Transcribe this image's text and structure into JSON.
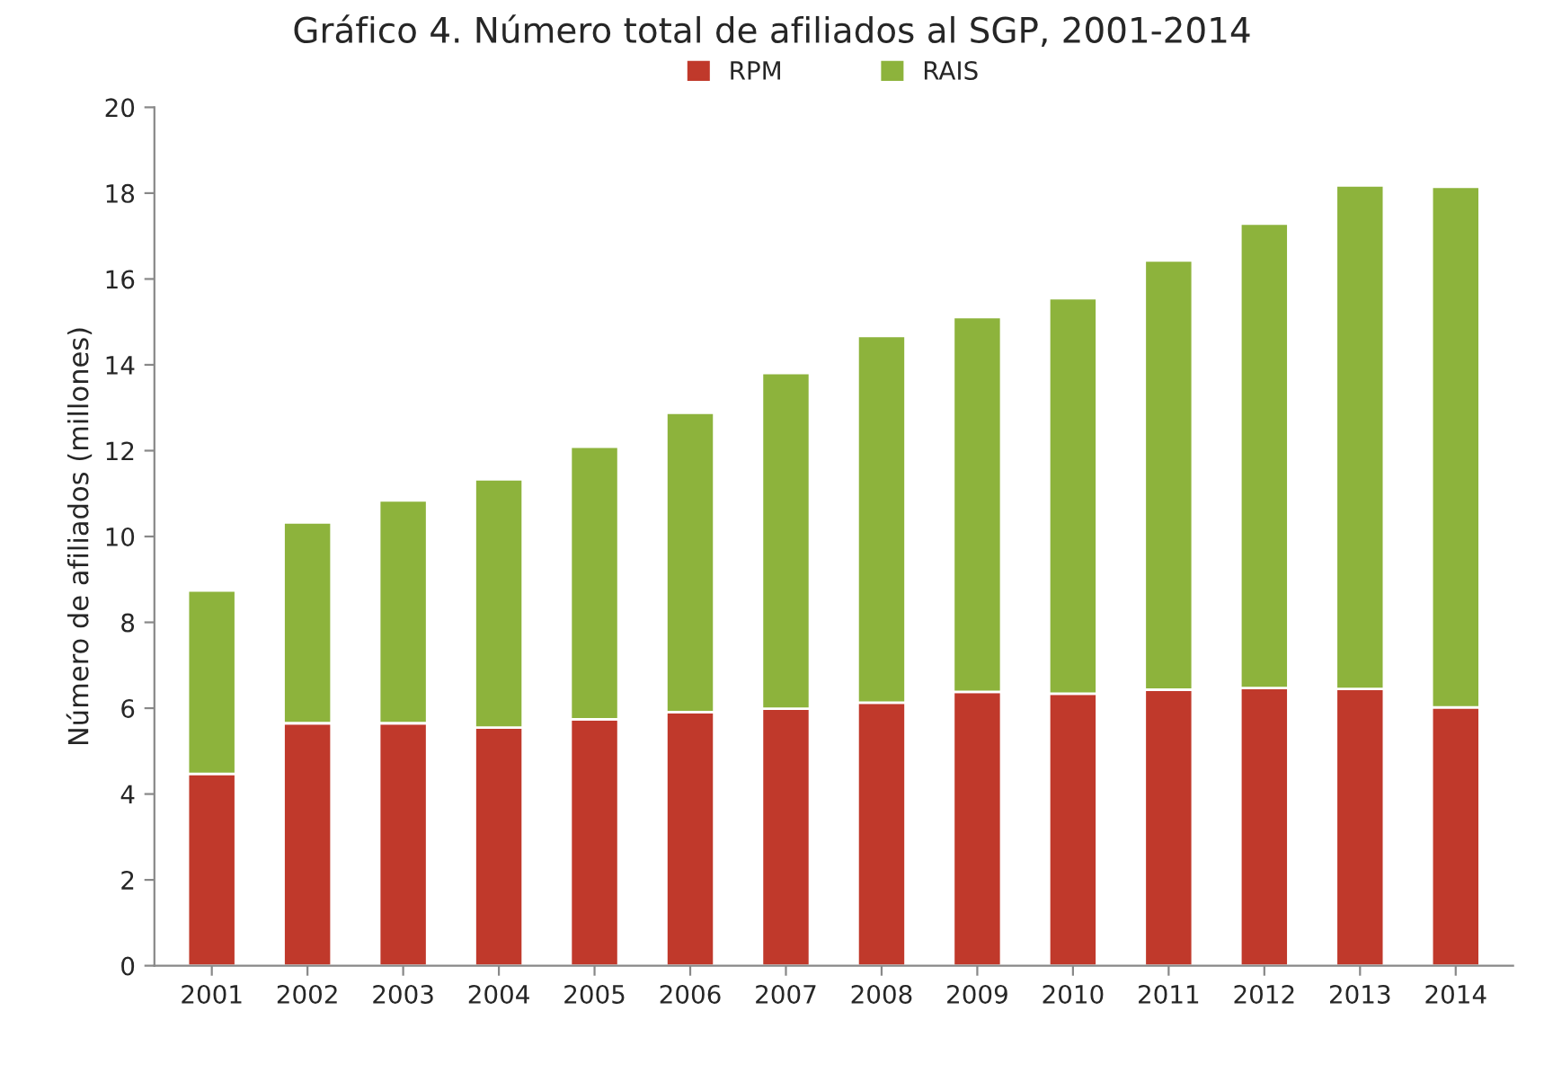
{
  "chart_data": {
    "type": "bar",
    "title": "Gráfico 4. Número total de afiliados al SGP, 2001-2014",
    "ylabel": "Número de afiliados (millones)",
    "categories": [
      "2001",
      "2002",
      "2003",
      "2004",
      "2005",
      "2006",
      "2007",
      "2008",
      "2009",
      "2010",
      "2011",
      "2012",
      "2013",
      "2014"
    ],
    "stacked": true,
    "series": [
      {
        "name": "RPM",
        "color": "#c0392b",
        "values": [
          4.47,
          5.65,
          5.65,
          5.55,
          5.74,
          5.91,
          5.99,
          6.13,
          6.38,
          6.34,
          6.43,
          6.47,
          6.45,
          6.02
        ]
      },
      {
        "name": "RAIS",
        "color": "#8db33c",
        "values": [
          4.27,
          4.68,
          5.19,
          5.78,
          6.35,
          6.97,
          7.82,
          8.54,
          8.73,
          9.21,
          10.0,
          10.82,
          11.73,
          12.13
        ]
      }
    ],
    "ylim": [
      0,
      20
    ],
    "yticks": [
      0,
      2,
      4,
      6,
      8,
      10,
      12,
      14,
      16,
      18,
      20
    ],
    "grid": false,
    "legend": "top"
  }
}
